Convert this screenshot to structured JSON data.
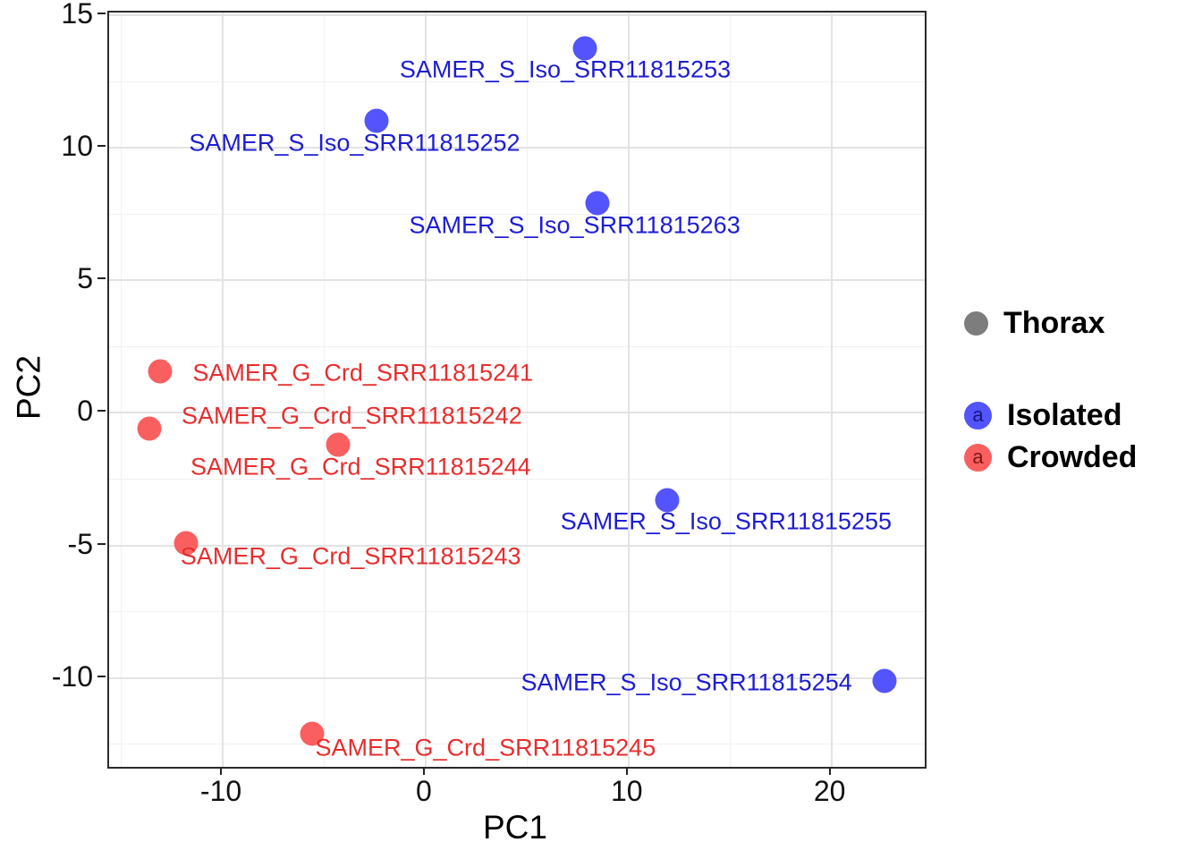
{
  "chart_data": {
    "type": "scatter",
    "title": "",
    "xlabel": "PC1",
    "ylabel": "PC2",
    "xlim": [
      -15.6,
      24.6
    ],
    "ylim": [
      -13.35,
      15.1
    ],
    "x_ticks": [
      -10,
      0,
      10,
      20
    ],
    "y_ticks": [
      15,
      10,
      5,
      0,
      -5,
      -10
    ],
    "x_minor": [
      -15,
      -5,
      5,
      15
    ],
    "y_minor": [
      12.5,
      7.5,
      2.5,
      -2.5,
      -7.5,
      -12.5
    ],
    "grid": true,
    "legend_position": "right",
    "series": [
      {
        "name": "Isolated",
        "point_color": "#5354fb",
        "text_color": "#1d1dd2",
        "points": [
          {
            "label": "SAMER_S_Iso_SRR11815253",
            "x": 7.85,
            "y": 13.75,
            "label_dx": -22,
            "label_dy": 24
          },
          {
            "label": "SAMER_S_Iso_SRR11815252",
            "x": -2.4,
            "y": 11.0,
            "label_dx": -25,
            "label_dy": 25
          },
          {
            "label": "SAMER_S_Iso_SRR11815263",
            "x": 8.45,
            "y": 7.9,
            "label_dx": -25,
            "label_dy": 25
          },
          {
            "label": "SAMER_S_Iso_SRR11815255",
            "x": 11.9,
            "y": -3.3,
            "label_dx": 66,
            "label_dy": 24
          },
          {
            "label": "SAMER_S_Iso_SRR11815254",
            "x": 22.6,
            "y": -10.1,
            "label_dx": -221,
            "label_dy": 2
          }
        ]
      },
      {
        "name": "Crowded",
        "point_color": "#fa5f5f",
        "text_color": "#e62e2e",
        "points": [
          {
            "label": "SAMER_G_Crd_SRR11815241",
            "x": -13.1,
            "y": 1.55,
            "label_dx": 227,
            "label_dy": 2
          },
          {
            "label": "SAMER_G_Crd_SRR11815242",
            "x": -13.6,
            "y": -0.6,
            "label_dx": 226,
            "label_dy": -14
          },
          {
            "label": "SAMER_G_Crd_SRR11815244",
            "x": -4.3,
            "y": -1.2,
            "label_dx": 25,
            "label_dy": 25
          },
          {
            "label": "SAMER_G_Crd_SRR11815243",
            "x": -11.8,
            "y": -4.9,
            "label_dx": 184,
            "label_dy": 15
          },
          {
            "label": "SAMER_G_Crd_SRR11815245",
            "x": -5.6,
            "y": -12.1,
            "label_dx": 194,
            "label_dy": 16
          }
        ]
      }
    ],
    "legend": {
      "groups": [
        {
          "entries": [
            {
              "label": "Thorax",
              "color": "#7d7d7d",
              "key_letter": "",
              "letter_color": ""
            }
          ]
        },
        {
          "entries": [
            {
              "label": "Isolated",
              "color": "#5354fb",
              "key_letter": "a",
              "letter_color": "#16167d"
            },
            {
              "label": "Crowded",
              "color": "#fa5f5f",
              "key_letter": "a",
              "letter_color": "#7d1616"
            }
          ]
        }
      ]
    }
  }
}
